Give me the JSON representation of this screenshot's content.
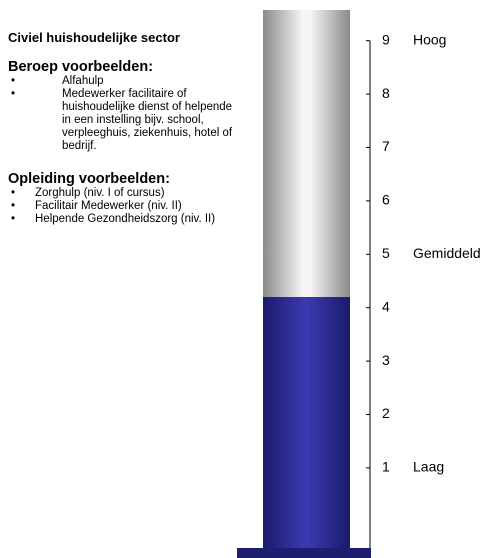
{
  "sidebar": {
    "title": "Civiel huishoudelijke sector",
    "beroep_heading": "Beroep voorbeelden:",
    "beroep_items": [
      "Alfahulp",
      "Medewerker facilitaire of huishoudelijke dienst of helpende in een instelling bijv. school, verpleeghuis, ziekenhuis, hotel of bedrijf."
    ],
    "opleiding_heading": "Opleiding voorbeelden:",
    "opleiding_items": [
      "Zorghulp (niv. I of cursus)",
      "Facilitair Medewerker (niv. II)",
      "Helpende Gezondheidszorg (niv. II)"
    ]
  },
  "chart_data": {
    "type": "bar",
    "values": [
      4.2
    ],
    "color": "#2a2a96",
    "ylim": [
      -0.5,
      9.5
    ],
    "yticks": [
      1,
      2,
      3,
      4,
      5,
      6,
      7,
      8,
      9
    ],
    "annotations": [
      {
        "label": "Hoog",
        "value": 9
      },
      {
        "label": "Gemiddeld",
        "value": 5
      },
      {
        "label": "Laag",
        "value": 1
      }
    ]
  }
}
